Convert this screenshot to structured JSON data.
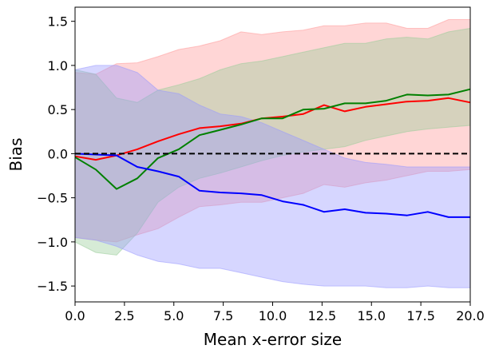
{
  "chart_data": {
    "type": "line",
    "title": "",
    "xlabel": "Mean x-error size",
    "ylabel": "Bias",
    "xlim": [
      0,
      20
    ],
    "ylim": [
      -1.68,
      1.66
    ],
    "grid": false,
    "legend": "none",
    "xticks": [
      0.0,
      2.5,
      5.0,
      7.5,
      10.0,
      12.5,
      15.0,
      17.5,
      20.0
    ],
    "xtick_labels": [
      "0.0",
      "2.5",
      "5.0",
      "7.5",
      "10.0",
      "12.5",
      "15.0",
      "17.5",
      "20.0"
    ],
    "yticks": [
      -1.5,
      -1.0,
      -0.5,
      0.0,
      0.5,
      1.0,
      1.5
    ],
    "ytick_labels": [
      "−1.5",
      "−1.0",
      "−0.5",
      "0.0",
      "0.5",
      "1.0",
      "1.5"
    ],
    "reference_line": {
      "y": 0.0,
      "color": "#000000",
      "style": "dashed"
    },
    "x": [
      0.0,
      1.05,
      2.1,
      3.15,
      4.2,
      5.25,
      6.3,
      7.35,
      8.4,
      9.45,
      10.5,
      11.55,
      12.6,
      13.65,
      14.7,
      15.75,
      16.8,
      17.85,
      18.9,
      20.0
    ],
    "series": [
      {
        "name": "red",
        "color": "#ff0000",
        "band_color": "#ff9999",
        "values": [
          -0.03,
          -0.07,
          -0.02,
          0.05,
          0.14,
          0.22,
          0.29,
          0.31,
          0.34,
          0.4,
          0.42,
          0.45,
          0.55,
          0.48,
          0.53,
          0.56,
          0.59,
          0.6,
          0.63,
          0.58
        ],
        "lower": [
          -0.95,
          -0.98,
          -1.0,
          -0.92,
          -0.85,
          -0.72,
          -0.6,
          -0.58,
          -0.55,
          -0.55,
          -0.5,
          -0.45,
          -0.35,
          -0.38,
          -0.33,
          -0.3,
          -0.25,
          -0.2,
          -0.2,
          -0.18
        ],
        "upper": [
          0.92,
          0.9,
          1.02,
          1.03,
          1.1,
          1.18,
          1.22,
          1.28,
          1.38,
          1.35,
          1.38,
          1.4,
          1.45,
          1.45,
          1.48,
          1.48,
          1.42,
          1.42,
          1.52,
          1.52
        ]
      },
      {
        "name": "green",
        "color": "#008000",
        "band_color": "#99cc99",
        "values": [
          -0.04,
          -0.18,
          -0.4,
          -0.28,
          -0.05,
          0.05,
          0.21,
          0.27,
          0.33,
          0.4,
          0.4,
          0.5,
          0.51,
          0.57,
          0.57,
          0.6,
          0.67,
          0.66,
          0.67,
          0.73
        ],
        "lower": [
          -1.0,
          -1.12,
          -1.15,
          -0.9,
          -0.55,
          -0.38,
          -0.28,
          -0.22,
          -0.15,
          -0.08,
          -0.02,
          0.02,
          0.05,
          0.08,
          0.15,
          0.2,
          0.25,
          0.28,
          0.3,
          0.32
        ],
        "upper": [
          0.95,
          0.9,
          0.63,
          0.58,
          0.72,
          0.78,
          0.85,
          0.95,
          1.02,
          1.05,
          1.1,
          1.15,
          1.2,
          1.25,
          1.25,
          1.3,
          1.32,
          1.3,
          1.38,
          1.42
        ]
      },
      {
        "name": "blue",
        "color": "#0000ff",
        "band_color": "#9999ff",
        "values": [
          0.0,
          -0.01,
          -0.02,
          -0.15,
          -0.2,
          -0.26,
          -0.42,
          -0.44,
          -0.45,
          -0.47,
          -0.54,
          -0.58,
          -0.66,
          -0.63,
          -0.67,
          -0.68,
          -0.7,
          -0.66,
          -0.72,
          -0.72
        ],
        "lower": [
          -0.95,
          -0.98,
          -1.05,
          -1.15,
          -1.22,
          -1.25,
          -1.3,
          -1.3,
          -1.35,
          -1.4,
          -1.45,
          -1.48,
          -1.5,
          -1.5,
          -1.5,
          -1.52,
          -1.52,
          -1.5,
          -1.52,
          -1.52
        ],
        "upper": [
          0.95,
          1.0,
          1.0,
          0.92,
          0.72,
          0.68,
          0.55,
          0.45,
          0.42,
          0.35,
          0.25,
          0.15,
          0.05,
          -0.05,
          -0.1,
          -0.12,
          -0.15,
          -0.15,
          -0.15,
          -0.15
        ]
      }
    ]
  }
}
